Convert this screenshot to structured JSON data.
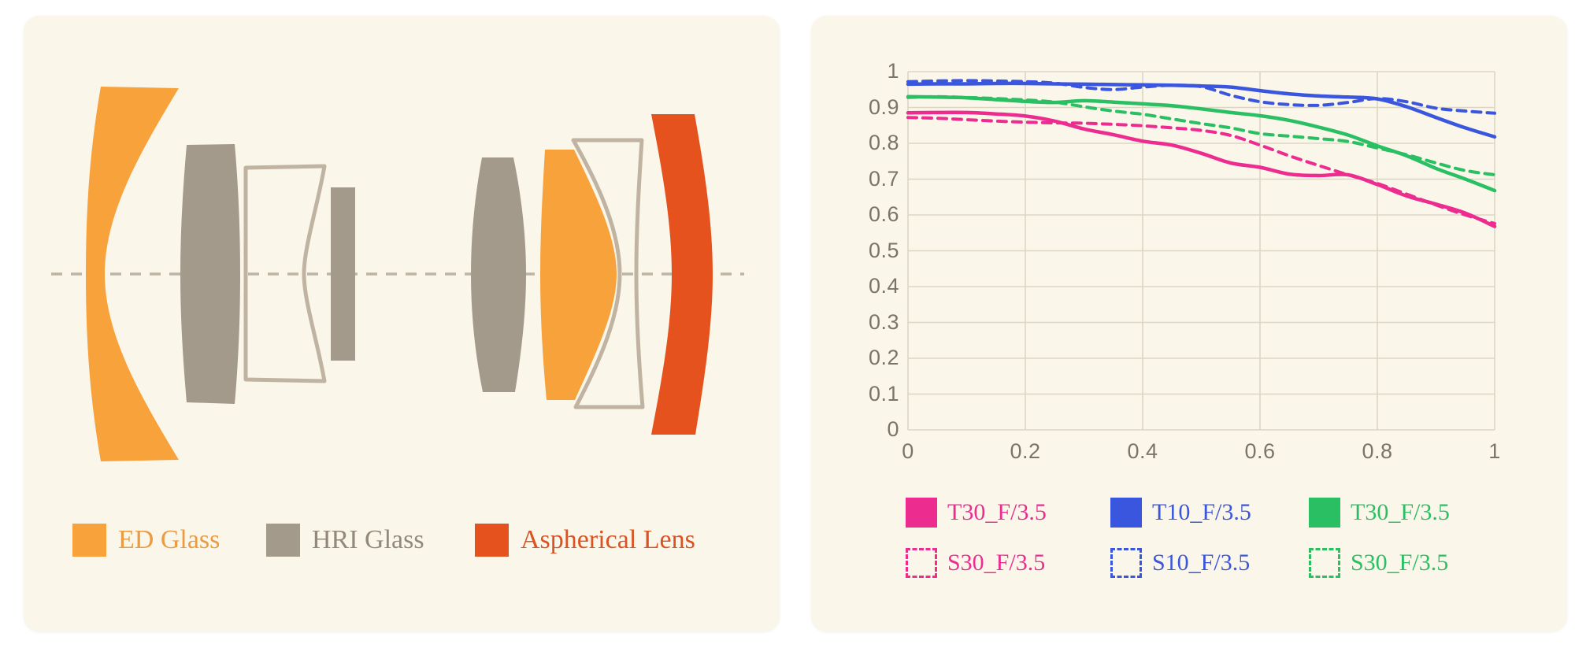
{
  "lens_panel": {
    "legend": [
      {
        "id": "ed-glass",
        "label": "ED Glass",
        "color": "#F7A23B",
        "text_color": "#EA9C43"
      },
      {
        "id": "hri-glass",
        "label": "HRI Glass",
        "color": "#A49A8B",
        "text_color": "#93897B"
      },
      {
        "id": "aspherical-lens",
        "label": "Aspherical Lens",
        "color": "#E5521D",
        "text_color": "#DB5322"
      }
    ],
    "colors": {
      "ed": "#F7A23B",
      "hri": "#A49A8B",
      "outline": "#C0B3A1",
      "aspherical": "#E5521D",
      "axis": "#BDB4A3",
      "panel_bg": "#FAF6EA"
    }
  },
  "chart_data": {
    "type": "line",
    "title": "",
    "xlabel": "",
    "ylabel": "",
    "xlim": [
      0,
      1
    ],
    "ylim": [
      0,
      1
    ],
    "grid": true,
    "grid_color": "#DCD5C4",
    "tick_color": "#7C7466",
    "legend_position": "bottom",
    "x_ticks": [
      0,
      0.2,
      0.4,
      0.6,
      0.8,
      1
    ],
    "x_tick_labels": [
      "0",
      "0.2",
      "0.4",
      "0.6",
      "0.8",
      "1"
    ],
    "y_ticks": [
      1,
      0.9,
      0.8,
      0.7,
      0.6,
      0.5,
      0.4,
      0.3,
      0.2,
      0.1,
      0
    ],
    "y_tick_labels": [
      "1",
      "0.9",
      "0.8",
      "0.7",
      "0.6",
      "0.5",
      "0.4",
      "0.3",
      "0.2",
      "0.1",
      "0"
    ],
    "x": [
      0,
      0.05,
      0.1,
      0.15,
      0.2,
      0.25,
      0.3,
      0.35,
      0.4,
      0.45,
      0.5,
      0.55,
      0.6,
      0.65,
      0.7,
      0.75,
      0.8,
      0.85,
      0.9,
      0.95,
      1
    ],
    "series": [
      {
        "name": "T30_F/3.5",
        "color": "#EC2C8F",
        "style": "solid",
        "values": [
          0.885,
          0.886,
          0.886,
          0.882,
          0.876,
          0.862,
          0.84,
          0.824,
          0.806,
          0.795,
          0.772,
          0.745,
          0.733,
          0.714,
          0.71,
          0.712,
          0.685,
          0.653,
          0.63,
          0.605,
          0.568
        ]
      },
      {
        "name": "S30_F/3.5",
        "color": "#EC2C8F",
        "style": "dashed",
        "values": [
          0.872,
          0.87,
          0.866,
          0.862,
          0.859,
          0.857,
          0.856,
          0.853,
          0.849,
          0.843,
          0.836,
          0.822,
          0.795,
          0.765,
          0.738,
          0.712,
          0.688,
          0.658,
          0.628,
          0.6,
          0.576
        ]
      },
      {
        "name": "T10_F/3.5",
        "color": "#3A56DF",
        "style": "solid",
        "values": [
          0.965,
          0.966,
          0.966,
          0.967,
          0.967,
          0.966,
          0.965,
          0.964,
          0.963,
          0.962,
          0.96,
          0.957,
          0.947,
          0.938,
          0.932,
          0.929,
          0.924,
          0.902,
          0.872,
          0.843,
          0.818
        ]
      },
      {
        "name": "S10_F/3.5",
        "color": "#3A56DF",
        "style": "dashed",
        "values": [
          0.972,
          0.974,
          0.975,
          0.974,
          0.972,
          0.968,
          0.956,
          0.95,
          0.957,
          0.962,
          0.958,
          0.934,
          0.916,
          0.908,
          0.906,
          0.914,
          0.925,
          0.916,
          0.898,
          0.89,
          0.884
        ]
      },
      {
        "name": "T30_F/3.5",
        "color": "#2ABF63",
        "style": "solid",
        "values": [
          0.93,
          0.929,
          0.927,
          0.922,
          0.917,
          0.914,
          0.919,
          0.915,
          0.91,
          0.905,
          0.896,
          0.886,
          0.877,
          0.864,
          0.845,
          0.823,
          0.793,
          0.765,
          0.73,
          0.7,
          0.668
        ]
      },
      {
        "name": "S30_F/3.5",
        "color": "#2ABF63",
        "style": "dashed",
        "values": [
          0.928,
          0.93,
          0.928,
          0.925,
          0.921,
          0.915,
          0.902,
          0.89,
          0.881,
          0.868,
          0.855,
          0.843,
          0.827,
          0.82,
          0.813,
          0.805,
          0.787,
          0.768,
          0.745,
          0.724,
          0.712
        ]
      }
    ]
  }
}
